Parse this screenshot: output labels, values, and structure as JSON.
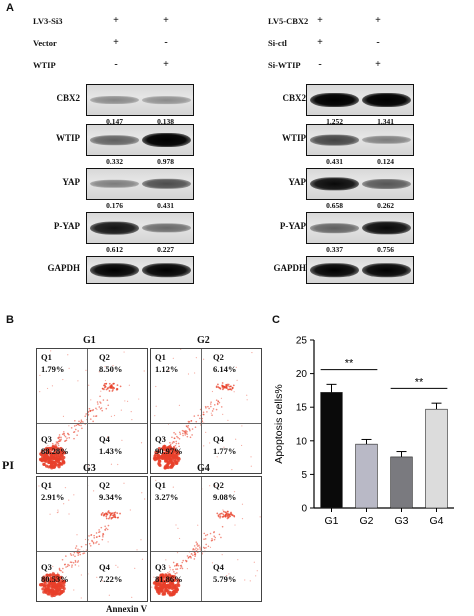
{
  "panelA": {
    "letter": "A",
    "left": {
      "conditions": [
        {
          "label": "LV3-Si3",
          "signs": [
            "+",
            "+"
          ]
        },
        {
          "label": "Vector",
          "signs": [
            "+",
            "-"
          ]
        },
        {
          "label": "WTIP",
          "signs": [
            "-",
            "+"
          ]
        }
      ],
      "blots": [
        {
          "label": "CBX2",
          "values": [
            "0.147",
            "0.138"
          ],
          "intensity": [
            0.25,
            0.22
          ]
        },
        {
          "label": "WTIP",
          "values": [
            "0.332",
            "0.978"
          ],
          "intensity": [
            0.45,
            1.0
          ]
        },
        {
          "label": "YAP",
          "values": [
            "0.176",
            "0.431"
          ],
          "intensity": [
            0.3,
            0.55
          ]
        },
        {
          "label": "P-YAP",
          "values": [
            "0.612",
            "0.227"
          ],
          "intensity": [
            0.85,
            0.4
          ]
        },
        {
          "label": "GAPDH",
          "values": [],
          "intensity": [
            0.95,
            0.95
          ]
        }
      ]
    },
    "right": {
      "conditions": [
        {
          "label": "LV5-CBX2",
          "signs": [
            "+",
            "+"
          ]
        },
        {
          "label": "Si-ctl",
          "signs": [
            "+",
            "-"
          ]
        },
        {
          "label": "Si-WTIP",
          "signs": [
            "-",
            "+"
          ]
        }
      ],
      "blots": [
        {
          "label": "CBX2",
          "values": [
            "1.252",
            "1.341"
          ],
          "intensity": [
            1.0,
            1.0
          ]
        },
        {
          "label": "WTIP",
          "values": [
            "0.431",
            "0.124"
          ],
          "intensity": [
            0.6,
            0.3
          ]
        },
        {
          "label": "YAP",
          "values": [
            "0.658",
            "0.262"
          ],
          "intensity": [
            0.9,
            0.5
          ]
        },
        {
          "label": "P-YAP",
          "values": [
            "0.337",
            "0.756"
          ],
          "intensity": [
            0.45,
            0.9
          ]
        },
        {
          "label": "GAPDH",
          "values": [],
          "intensity": [
            0.95,
            0.95
          ]
        }
      ]
    }
  },
  "panelB": {
    "letter": "B",
    "y_title": "PI",
    "x_title": "Annexin V",
    "plots": [
      {
        "name": "G1",
        "q1": "1.79%",
        "q2": "8.50%",
        "q3": "88.28%",
        "q4": "1.43%"
      },
      {
        "name": "G2",
        "q1": "1.12%",
        "q2": "6.14%",
        "q3": "90.97%",
        "q4": "1.77%"
      },
      {
        "name": "G3",
        "q1": "2.91%",
        "q2": "9.34%",
        "q3": "80.53%",
        "q4": "7.22%"
      },
      {
        "name": "G4",
        "q1": "3.27%",
        "q2": "9.08%",
        "q3": "81.86%",
        "q4": "5.79%"
      }
    ],
    "quadrant_labels": [
      "Q1",
      "Q2",
      "Q3",
      "Q4"
    ],
    "dot_color": "#e8402a"
  },
  "panelC": {
    "letter": "C",
    "chart_data": {
      "type": "bar",
      "categories": [
        "G1",
        "G2",
        "G3",
        "G4"
      ],
      "values": [
        17.2,
        9.5,
        7.6,
        14.7
      ],
      "errors": [
        1.2,
        0.7,
        0.8,
        0.9
      ],
      "colors": [
        "#0a0a0a",
        "#b9b9c6",
        "#7a7a7f",
        "#dcdcdc"
      ],
      "ylabel": "Apoptosis cells%",
      "ylim": [
        0,
        25
      ],
      "yticks": [
        0,
        5,
        10,
        15,
        20,
        25
      ],
      "significance": [
        {
          "from": "G1",
          "to": "G2",
          "label": "**"
        },
        {
          "from": "G3",
          "to": "G4",
          "label": "**"
        }
      ]
    }
  }
}
